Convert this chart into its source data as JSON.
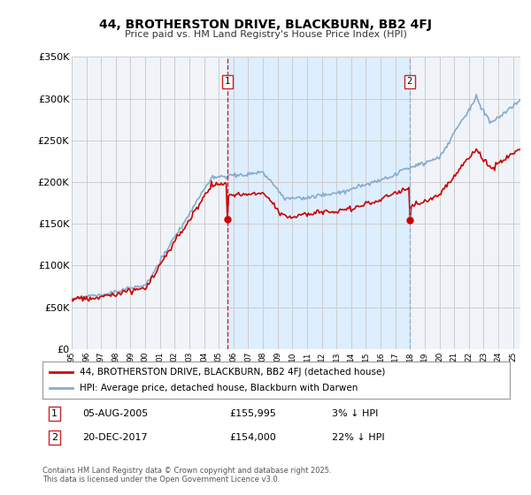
{
  "title": "44, BROTHERSTON DRIVE, BLACKBURN, BB2 4FJ",
  "subtitle": "Price paid vs. HM Land Registry's House Price Index (HPI)",
  "ylim": [
    0,
    350000
  ],
  "yticks": [
    0,
    50000,
    100000,
    150000,
    200000,
    250000,
    300000,
    350000
  ],
  "ytick_labels": [
    "£0",
    "£50K",
    "£100K",
    "£150K",
    "£200K",
    "£250K",
    "£300K",
    "£350K"
  ],
  "xlim_start": 1995.0,
  "xlim_end": 2025.5,
  "legend_line1": "44, BROTHERSTON DRIVE, BLACKBURN, BB2 4FJ (detached house)",
  "legend_line2": "HPI: Average price, detached house, Blackburn with Darwen",
  "sale1_date": "05-AUG-2005",
  "sale1_price": "£155,995",
  "sale1_hpi": "3% ↓ HPI",
  "sale2_date": "20-DEC-2017",
  "sale2_price": "£154,000",
  "sale2_hpi": "22% ↓ HPI",
  "sale1_year": 2005.58,
  "sale2_year": 2017.97,
  "copyright": "Contains HM Land Registry data © Crown copyright and database right 2025.\nThis data is licensed under the Open Government Licence v3.0.",
  "line_color_red": "#cc0000",
  "line_color_blue": "#88aacc",
  "bg_color": "#f0f4f8",
  "grid_color": "#cccccc",
  "shade_color": "#ddeeff"
}
